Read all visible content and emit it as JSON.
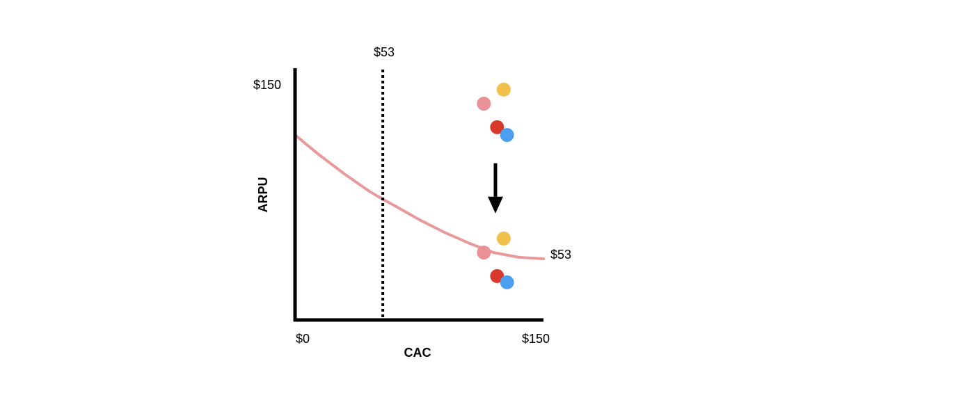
{
  "chart_data": {
    "type": "scatter",
    "title": "",
    "xlabel": "CAC",
    "ylabel": "ARPU",
    "xlim": [
      0,
      150
    ],
    "ylim": [
      0,
      150
    ],
    "grid": false,
    "x_tick_labels": [
      "$0",
      "$150"
    ],
    "y_tick_labels": [
      "$150"
    ],
    "reference_line": {
      "x": 53,
      "label": "$53",
      "style": "dotted",
      "color": "#000000"
    },
    "curve": {
      "label": "$53",
      "color": "#e89a9a",
      "x": [
        0,
        15,
        30,
        45,
        53,
        60,
        75,
        90,
        105,
        120,
        135,
        150
      ],
      "y": [
        118,
        105,
        93,
        82,
        77,
        73,
        64,
        56,
        49,
        43,
        40,
        39
      ]
    },
    "annotation_arrow": {
      "direction": "down",
      "color": "#000000",
      "x": 121,
      "y_from": 100,
      "y_to": 68
    },
    "groups": [
      {
        "name": "",
        "points": [
          {
            "x": 126,
            "y": 147,
            "color": "#f0c04a"
          },
          {
            "x": 114,
            "y": 138,
            "color": "#ea9196"
          },
          {
            "x": 122,
            "y": 123,
            "color": "#d9392b"
          },
          {
            "x": 128,
            "y": 118,
            "color": "#4b9ff0"
          }
        ]
      },
      {
        "name": "",
        "points": [
          {
            "x": 126,
            "y": 52,
            "color": "#f0c04a"
          },
          {
            "x": 114,
            "y": 43,
            "color": "#ea9196"
          },
          {
            "x": 122,
            "y": 28,
            "color": "#d9392b"
          },
          {
            "x": 128,
            "y": 24,
            "color": "#4b9ff0"
          }
        ]
      }
    ]
  }
}
